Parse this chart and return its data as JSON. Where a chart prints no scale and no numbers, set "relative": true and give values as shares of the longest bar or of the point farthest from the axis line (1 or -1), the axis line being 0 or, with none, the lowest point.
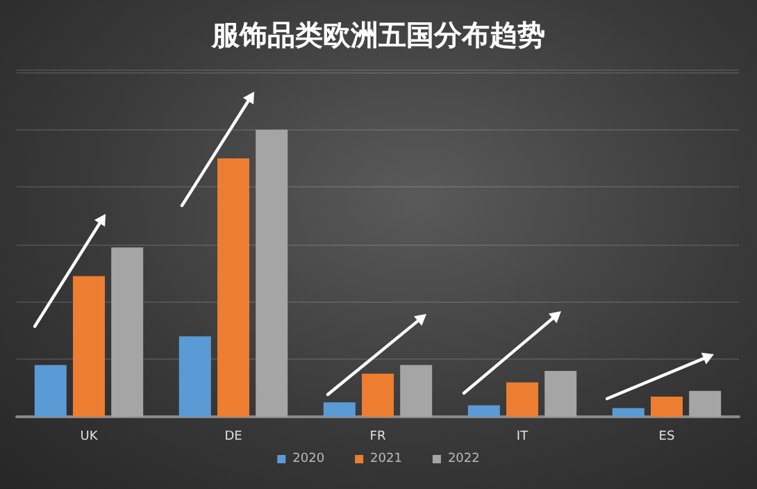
{
  "chart_data": {
    "type": "bar",
    "title": "服饰品类欧洲五国分布趋势",
    "relative": true,
    "grid": "y",
    "legend": "bottom",
    "categories": [
      "UK",
      "DE",
      "FR",
      "IT",
      "ES"
    ],
    "series": [
      {
        "name": "2020",
        "color": "#5b9bd5",
        "values": [
          0.18,
          0.28,
          0.05,
          0.04,
          0.03
        ]
      },
      {
        "name": "2021",
        "color": "#ed7d31",
        "values": [
          0.49,
          0.9,
          0.15,
          0.12,
          0.07
        ]
      },
      {
        "name": "2022",
        "color": "#a5a5a5",
        "values": [
          0.59,
          1,
          0.18,
          0.16,
          0.09
        ]
      }
    ]
  }
}
